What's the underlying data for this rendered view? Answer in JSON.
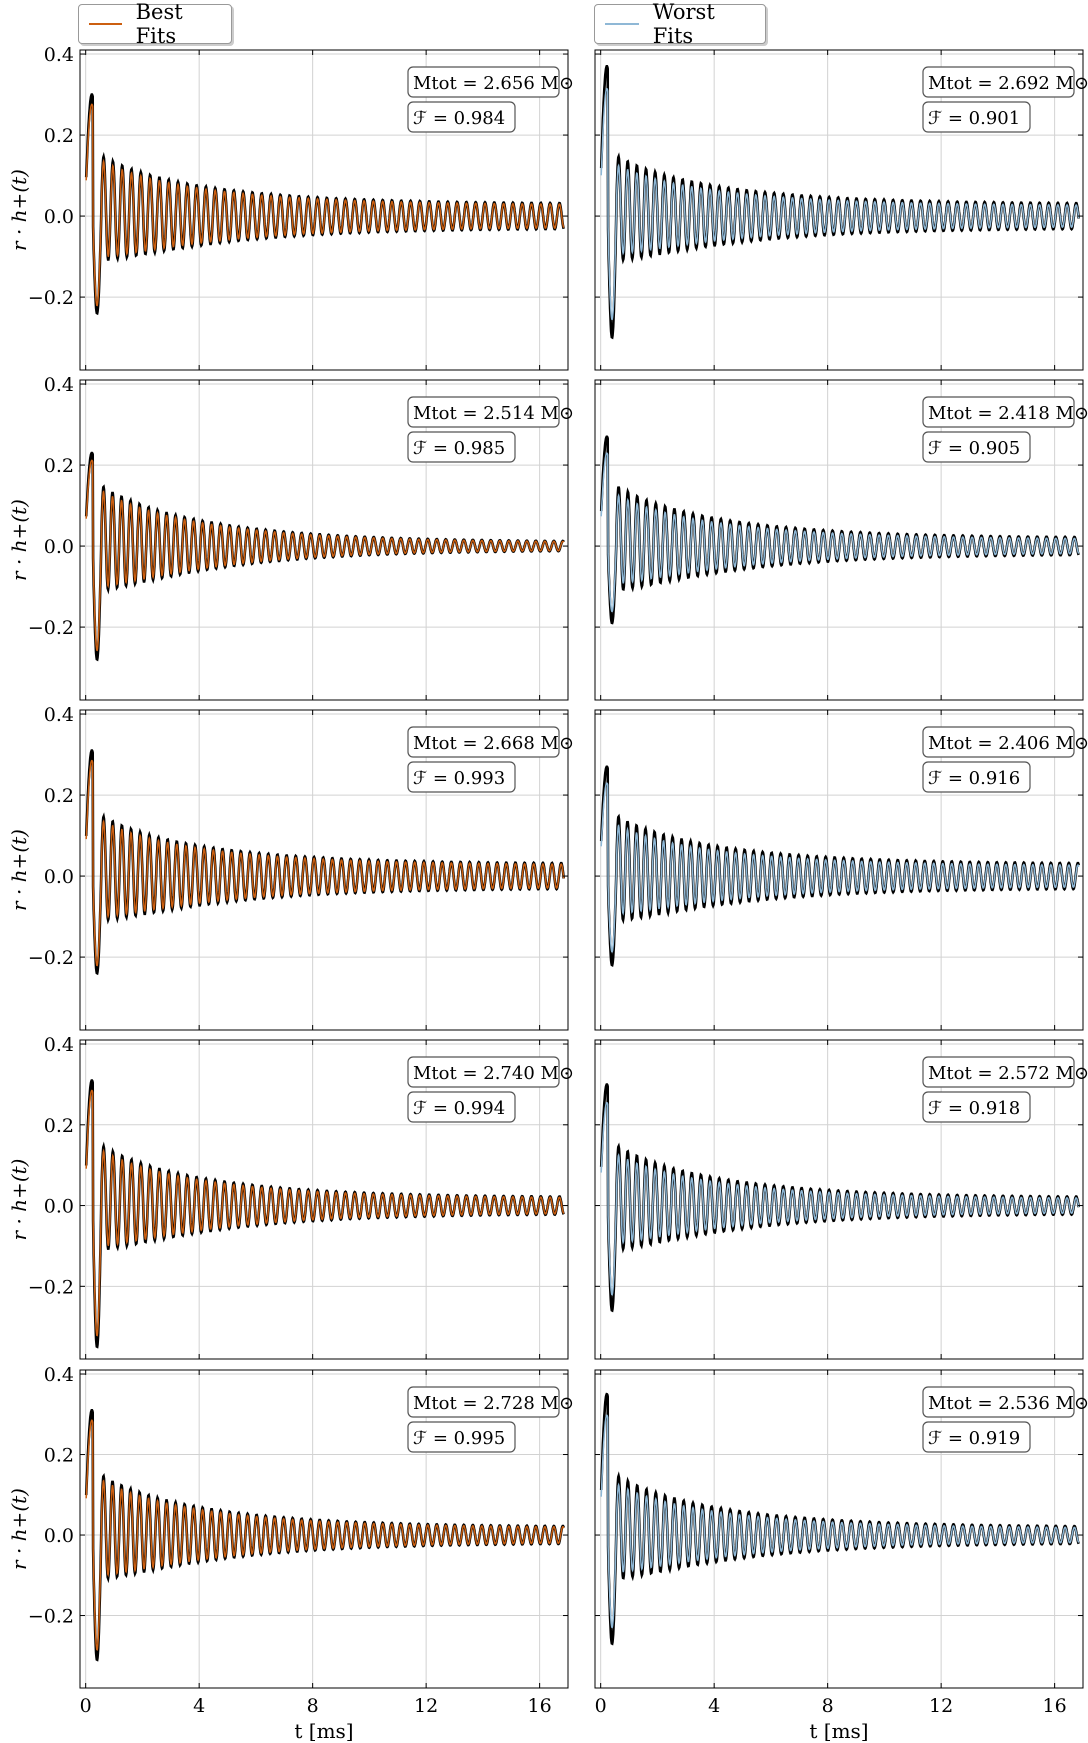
{
  "legend": {
    "best_label": "Best Fits",
    "worst_label": "Worst Fits"
  },
  "colors": {
    "best": "#cc5f10",
    "worst": "#8fb8d6",
    "reference": "#000000",
    "grid": "#d2d2d2",
    "box_border": "#555555"
  },
  "chart_data": {
    "type": "line",
    "layout": "5 rows x 2 columns of waveform panels",
    "xlabel": "t [ms]",
    "ylabel": "r · h+(t)",
    "xlim": [
      -0.2,
      17.0
    ],
    "ylim": [
      -0.38,
      0.41
    ],
    "xticks": [
      0,
      4,
      8,
      12,
      16
    ],
    "yticks": [
      0.4,
      0.2,
      0.0,
      -0.2
    ],
    "xtick_labels": [
      "0",
      "4",
      "8",
      "12",
      "16"
    ],
    "ytick_labels": [
      "0.4",
      "0.2",
      "0.0",
      "−0.2"
    ],
    "grid": true,
    "series_names": [
      "Best Fits",
      "Worst Fits"
    ],
    "panels": [
      {
        "row": 1,
        "column": "Best Fits",
        "M_tot": "2.656",
        "fitting_factor": "0.984",
        "waveform": {
          "peak": 0.3,
          "trough": -0.24,
          "tail_amplitude": 0.03
        }
      },
      {
        "row": 1,
        "column": "Worst Fits",
        "M_tot": "2.692",
        "fitting_factor": "0.901",
        "waveform": {
          "peak": 0.37,
          "trough": -0.3,
          "tail_amplitude": 0.03
        }
      },
      {
        "row": 2,
        "column": "Best Fits",
        "M_tot": "2.514",
        "fitting_factor": "0.985",
        "waveform": {
          "peak": 0.23,
          "trough": -0.28,
          "tail_amplitude": 0.01
        }
      },
      {
        "row": 2,
        "column": "Worst Fits",
        "M_tot": "2.418",
        "fitting_factor": "0.905",
        "waveform": {
          "peak": 0.27,
          "trough": -0.19,
          "tail_amplitude": 0.02
        }
      },
      {
        "row": 3,
        "column": "Best Fits",
        "M_tot": "2.668",
        "fitting_factor": "0.993",
        "waveform": {
          "peak": 0.31,
          "trough": -0.24,
          "tail_amplitude": 0.03
        }
      },
      {
        "row": 3,
        "column": "Worst Fits",
        "M_tot": "2.406",
        "fitting_factor": "0.916",
        "waveform": {
          "peak": 0.27,
          "trough": -0.22,
          "tail_amplitude": 0.03
        }
      },
      {
        "row": 4,
        "column": "Best Fits",
        "M_tot": "2.740",
        "fitting_factor": "0.994",
        "waveform": {
          "peak": 0.31,
          "trough": -0.35,
          "tail_amplitude": 0.02
        }
      },
      {
        "row": 4,
        "column": "Worst Fits",
        "M_tot": "2.572",
        "fitting_factor": "0.918",
        "waveform": {
          "peak": 0.3,
          "trough": -0.26,
          "tail_amplitude": 0.02
        }
      },
      {
        "row": 5,
        "column": "Best Fits",
        "M_tot": "2.728",
        "fitting_factor": "0.995",
        "waveform": {
          "peak": 0.31,
          "trough": -0.31,
          "tail_amplitude": 0.02
        }
      },
      {
        "row": 5,
        "column": "Worst Fits",
        "M_tot": "2.536",
        "fitting_factor": "0.919",
        "waveform": {
          "peak": 0.35,
          "trough": -0.27,
          "tail_amplitude": 0.02
        }
      }
    ]
  }
}
